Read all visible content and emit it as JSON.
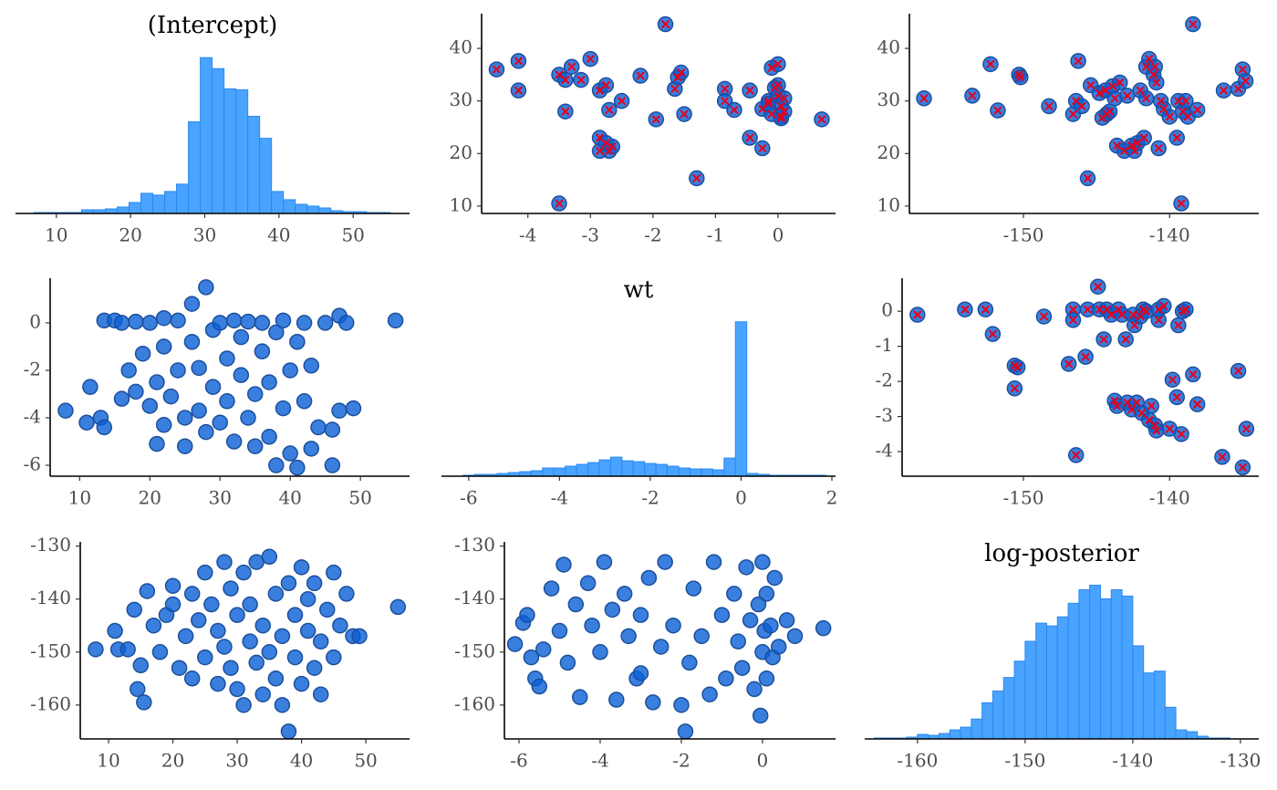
{
  "chart_data": [
    {
      "type": "histogram",
      "title": "(Intercept)",
      "color": "#4aa3ff",
      "edge_color": "#2a8af0",
      "bins": [
        7,
        8.6,
        10.2,
        11.8,
        13.4,
        15,
        16.6,
        18.2,
        19.8,
        21.4,
        23,
        24.6,
        26.2,
        27.8,
        29.4,
        31,
        32.6,
        34.2,
        35.8,
        37.4,
        39,
        40.6,
        42.2,
        43.8,
        45.4,
        47,
        48.6,
        50.2,
        51.8,
        53.4,
        55
      ],
      "counts": [
        1,
        1,
        1,
        1,
        4,
        4,
        5,
        7,
        12,
        22,
        20,
        24,
        32,
        100,
        170,
        158,
        136,
        135,
        106,
        82,
        24,
        15,
        10,
        8,
        6,
        3,
        2,
        2,
        1,
        1
      ],
      "xlim": [
        4.5,
        57.6
      ],
      "xticks": [
        10,
        20,
        30,
        40,
        50
      ]
    },
    {
      "type": "scatter",
      "color": "#0a5fd6",
      "edge_color": "#1b4f9c",
      "divergent": true,
      "divergent_color": "#e8001c",
      "x": [
        -4.5,
        -4.15,
        -4.15,
        -3.5,
        -3.5,
        -3.4,
        -3.4,
        -3.3,
        -3.15,
        -3.0,
        -2.85,
        -2.85,
        -2.75,
        -2.7,
        -2.85,
        -2.7,
        -2.65,
        -2.75,
        -2.5,
        -2.2,
        -1.95,
        -1.8,
        -1.65,
        -1.6,
        -1.55,
        -1.5,
        -1.3,
        -0.85,
        -0.85,
        -0.7,
        -0.45,
        -0.45,
        -0.25,
        -0.25,
        -0.15,
        -0.1,
        0,
        0,
        0,
        0.05,
        0.05,
        -0.1,
        0.1,
        0.05,
        0.7,
        -0.05,
        0.1,
        -0.15
      ],
      "values": [
        36,
        37.6,
        32,
        35,
        10.5,
        34,
        28,
        36.5,
        34,
        38,
        32,
        23,
        33,
        28.3,
        20.5,
        20.5,
        21.3,
        22,
        30,
        34.8,
        26.5,
        44.6,
        32.3,
        34.5,
        35.4,
        27.5,
        15.3,
        32.3,
        30,
        28.3,
        32,
        23,
        21,
        28.5,
        30,
        36.3,
        37,
        33,
        31,
        29,
        27,
        27.5,
        30.5,
        26.7,
        26.5,
        32.5,
        28,
        29.5
      ],
      "xlim": [
        -4.74,
        0.92
      ],
      "ylim": [
        8.6,
        46.6
      ],
      "xticks": [
        -4,
        -3,
        -2,
        -1,
        0
      ],
      "yticks": [
        10,
        20,
        30,
        40
      ]
    },
    {
      "type": "scatter",
      "color": "#0a5fd6",
      "edge_color": "#1b4f9c",
      "divergent": true,
      "divergent_color": "#e8001c",
      "x": [
        -156.8,
        -153.5,
        -152.25,
        -151.75,
        -150.3,
        -150.2,
        -148.25,
        -146.6,
        -146.4,
        -146.25,
        -146.0,
        -145.4,
        -145.6,
        -144.8,
        -144.6,
        -144.4,
        -144.3,
        -144.1,
        -143.9,
        -143.75,
        -143.6,
        -143.4,
        -143.1,
        -142.9,
        -142.6,
        -142.4,
        -142.2,
        -142.0,
        -141.75,
        -141.6,
        -141.6,
        -141.4,
        -141.1,
        -141.0,
        -140.9,
        -140.75,
        -140.6,
        -140.4,
        -140.0,
        -139.5,
        -139.4,
        -139.2,
        -139.1,
        -138.9,
        -138.75,
        -138.4,
        -138.1,
        -136.3,
        -135.3,
        -135.0,
        -134.8
      ],
      "values": [
        30.5,
        31,
        37,
        28.2,
        35,
        34.5,
        29,
        27.5,
        30,
        37.6,
        29,
        33,
        15.3,
        31.5,
        26.8,
        32,
        27.5,
        28,
        32.8,
        30.5,
        21.5,
        33.5,
        20.5,
        31,
        21.5,
        20.5,
        22,
        32,
        23,
        30.5,
        36.5,
        38,
        35,
        36.5,
        33.5,
        21,
        30,
        28.5,
        27,
        23,
        30,
        10.5,
        28,
        30,
        27,
        44.6,
        28.3,
        32,
        32.3,
        36,
        33.8
      ],
      "xlim": [
        -157.8,
        -133.9
      ],
      "ylim": [
        8.6,
        46.6
      ],
      "xticks": [
        -150,
        -140
      ],
      "yticks": [
        10,
        20,
        30,
        40
      ]
    },
    {
      "type": "scatter",
      "color": "#0a5fd6",
      "edge_color": "#1b4f9c",
      "divergent": false,
      "x": [
        8,
        11,
        11.5,
        13,
        13.5,
        13.5,
        15,
        16,
        16,
        17,
        18,
        18,
        19,
        20,
        20,
        21,
        21,
        22,
        22,
        22,
        23,
        24,
        24,
        25,
        25,
        26,
        26,
        27,
        27,
        28,
        28,
        29,
        29,
        30,
        30,
        31,
        31,
        32,
        32,
        33,
        33,
        34,
        34,
        35,
        35,
        36,
        36,
        37,
        37,
        38,
        38,
        39,
        39,
        40,
        40,
        41,
        41,
        42,
        42,
        43,
        43,
        44,
        45,
        46,
        46,
        47,
        47,
        48,
        49,
        55
      ],
      "values": [
        -3.7,
        -4.2,
        -2.7,
        -4.0,
        -4.4,
        0.1,
        0.1,
        -3.2,
        0,
        -2.0,
        -2.9,
        0.05,
        -1.3,
        -3.5,
        0,
        -5.1,
        -2.5,
        -4.3,
        -1.0,
        0.2,
        -3.1,
        -2.0,
        0.1,
        -5.2,
        -4.0,
        -0.8,
        0.8,
        -3.7,
        -1.9,
        1.5,
        -4.6,
        -0.3,
        -2.7,
        0,
        -4.2,
        -1.5,
        -3.3,
        0.1,
        -5.0,
        -2.2,
        -0.6,
        -4.0,
        0.05,
        -3.0,
        -5.2,
        -1.2,
        0,
        -4.8,
        -2.5,
        -6.0,
        -0.4,
        -3.6,
        0.1,
        -5.5,
        -2.0,
        -6.1,
        -0.8,
        -3.3,
        0,
        -5.3,
        -1.8,
        -4.4,
        0,
        -6.0,
        -4.5,
        0.3,
        -3.7,
        0,
        -3.6,
        0.1
      ],
      "xlim": [
        5.8,
        57
      ],
      "ylim": [
        -6.46,
        1.88
      ],
      "xticks": [
        10,
        20,
        30,
        40,
        50
      ],
      "yticks": [
        -6,
        -4,
        -2,
        0
      ]
    },
    {
      "type": "histogram",
      "title": "wt",
      "color": "#4aa3ff",
      "edge_color": "#2a8af0",
      "bins": [
        -6.125,
        -5.875,
        -5.625,
        -5.375,
        -5.125,
        -4.875,
        -4.625,
        -4.375,
        -4.125,
        -3.875,
        -3.625,
        -3.375,
        -3.125,
        -2.875,
        -2.625,
        -2.375,
        -2.125,
        -1.875,
        -1.625,
        -1.375,
        -1.125,
        -0.875,
        -0.625,
        -0.375,
        -0.125,
        0.125,
        0.375,
        0.625,
        0.875,
        1.125,
        1.375,
        1.625,
        1.875
      ],
      "counts": [
        1,
        2,
        2,
        3,
        4,
        5,
        6,
        9,
        9,
        11,
        13,
        15,
        18,
        21,
        17,
        16,
        14,
        13,
        11,
        9,
        8,
        8,
        7,
        20,
        170,
        3,
        2,
        1,
        1,
        1,
        1,
        1
      ],
      "xlim": [
        -6.6,
        2.08
      ],
      "xticks": [
        -6,
        -4,
        -2,
        0,
        2
      ]
    },
    {
      "type": "scatter",
      "color": "#0a5fd6",
      "edge_color": "#1b4f9c",
      "divergent": true,
      "divergent_color": "#e8001c",
      "x": [
        -157.25,
        -154.0,
        -152.6,
        -152.1,
        -150.6,
        -150.4,
        -150.6,
        -148.6,
        -146.9,
        -146.6,
        -146.6,
        -146.4,
        -145.75,
        -145.6,
        -144.9,
        -144.8,
        -144.5,
        -144.3,
        -144.0,
        -143.75,
        -143.6,
        -143.5,
        -143.25,
        -143.0,
        -142.9,
        -142.6,
        -142.5,
        -142.4,
        -142.25,
        -142.0,
        -141.9,
        -141.8,
        -141.6,
        -141.4,
        -141.25,
        -141.0,
        -140.9,
        -140.75,
        -140.75,
        -140.4,
        -140.0,
        -139.8,
        -139.5,
        -139.4,
        -139.2,
        -139.1,
        -138.9,
        -138.4,
        -138.1,
        -136.4,
        -135.3,
        -135.0,
        -134.75
      ],
      "values": [
        -0.1,
        0.05,
        0.05,
        -0.65,
        -1.55,
        -1.6,
        -2.2,
        -0.15,
        -1.5,
        0.05,
        -0.25,
        -4.1,
        -1.3,
        0.05,
        0.7,
        0.05,
        -0.8,
        0.05,
        -0.1,
        -2.55,
        -2.7,
        0.05,
        -0.1,
        -0.8,
        -2.6,
        -2.8,
        -0.1,
        -0.4,
        -2.6,
        -0.15,
        -2.9,
        0.05,
        0,
        -3.1,
        -2.7,
        -3.25,
        -3.4,
        -0.25,
        0.05,
        0.15,
        -3.35,
        -1.95,
        -2.45,
        -0.4,
        -3.5,
        0,
        0.05,
        -1.8,
        -2.65,
        -4.15,
        -1.7,
        -4.45,
        -3.35
      ],
      "xlim": [
        -158.3,
        -133.9
      ],
      "ylim": [
        -4.7,
        0.94
      ],
      "xticks": [
        -150,
        -140
      ],
      "yticks": [
        -4,
        -3,
        -2,
        -1,
        0
      ]
    },
    {
      "type": "scatter",
      "color": "#0a5fd6",
      "edge_color": "#1b4f9c",
      "divergent": false,
      "x": [
        8,
        11,
        11.5,
        13,
        14,
        14.5,
        15,
        15.5,
        16,
        17,
        18,
        19,
        20,
        20,
        21,
        22,
        23,
        23,
        24,
        25,
        25,
        26,
        27,
        27,
        28,
        28,
        29,
        29,
        30,
        30,
        31,
        31,
        32,
        32,
        33,
        33,
        34,
        34,
        35,
        35,
        36,
        36,
        37,
        37,
        38,
        38,
        39,
        39,
        40,
        40,
        41,
        41,
        42,
        42,
        43,
        43,
        44,
        45,
        45,
        46,
        47,
        48,
        49,
        55
      ],
      "values": [
        -149.5,
        -146,
        -149.5,
        -149.5,
        -142,
        -157,
        -152.5,
        -159.5,
        -138.5,
        -145,
        -150,
        -143,
        -141,
        -137.5,
        -153,
        -147,
        -155,
        -139,
        -144,
        -135,
        -151,
        -141,
        -156,
        -146,
        -133,
        -149,
        -138,
        -153,
        -143,
        -157,
        -160,
        -135,
        -148,
        -141,
        -152,
        -133,
        -145,
        -158,
        -132,
        -150,
        -139,
        -155,
        -147,
        -160,
        -165,
        -137,
        -143,
        -151,
        -134,
        -156,
        -146,
        -140,
        -153,
        -137,
        -148,
        -158,
        -142,
        -135,
        -151,
        -145,
        -139,
        -147,
        -147,
        -141.5
      ],
      "xlim": [
        5.6,
        56.8
      ],
      "ylim": [
        -166.4,
        -129.2
      ],
      "xticks": [
        10,
        20,
        30,
        40,
        50
      ],
      "yticks": [
        -160,
        -150,
        -140,
        -130
      ]
    },
    {
      "type": "scatter",
      "color": "#0a5fd6",
      "edge_color": "#1b4f9c",
      "divergent": false,
      "x": [
        -6.1,
        -5.9,
        -5.8,
        -5.6,
        -5.5,
        -5.4,
        -5.2,
        -5.0,
        -4.8,
        -4.6,
        -4.5,
        -4.3,
        -4.2,
        -4.0,
        -3.9,
        -3.7,
        -3.6,
        -3.4,
        -3.3,
        -3.1,
        -3.0,
        -2.8,
        -2.7,
        -2.5,
        -2.4,
        -2.2,
        -2.0,
        -1.9,
        -1.8,
        -1.7,
        -1.5,
        -1.3,
        -1.2,
        -1.0,
        -0.9,
        -0.7,
        -0.6,
        -0.5,
        -0.4,
        -0.3,
        -0.2,
        -0.1,
        -0.05,
        0,
        0,
        0.05,
        0.1,
        0.1,
        0.2,
        0.25,
        0.3,
        0.4,
        0.6,
        0.8,
        1.5,
        -4.9,
        -5.7,
        -3.0
      ],
      "values": [
        -148.5,
        -144.5,
        -143,
        -155,
        -156.5,
        -149.5,
        -138,
        -146,
        -152,
        -141,
        -158.5,
        -137,
        -145,
        -150,
        -133,
        -142,
        -159,
        -139,
        -147,
        -155,
        -143,
        -136,
        -159.5,
        -149,
        -133,
        -145,
        -160,
        -165,
        -152,
        -138,
        -147,
        -158,
        -133,
        -143,
        -155,
        -139,
        -148,
        -153,
        -134,
        -144,
        -157,
        -141,
        -162,
        -150,
        -133,
        -146,
        -155,
        -139,
        -145,
        -151,
        -136,
        -149,
        -144,
        -147,
        -145.5,
        -133.5,
        -151,
        -154
      ],
      "xlim": [
        -6.36,
        1.8
      ],
      "ylim": [
        -166.4,
        -129.2
      ],
      "xticks": [
        -6,
        -4,
        -2,
        0
      ],
      "yticks": [
        -160,
        -150,
        -140,
        -130
      ]
    },
    {
      "type": "histogram",
      "title": "log-posterior",
      "color": "#4aa3ff",
      "edge_color": "#2a8af0",
      "bins": [
        -164,
        -163,
        -162,
        -161,
        -160,
        -159,
        -158,
        -157,
        -156,
        -155,
        -154,
        -153,
        -152,
        -151,
        -150,
        -149,
        -148,
        -147,
        -146,
        -145,
        -144,
        -143,
        -142,
        -141,
        -140,
        -139,
        -138,
        -137,
        -136,
        -135,
        -134,
        -133,
        -132,
        -131
      ],
      "counts": [
        1,
        1,
        1,
        2,
        5,
        4,
        6,
        10,
        13,
        22,
        40,
        53,
        68,
        86,
        108,
        128,
        125,
        135,
        150,
        165,
        170,
        155,
        165,
        158,
        103,
        73,
        75,
        35,
        10,
        8,
        3,
        1,
        1
      ],
      "xlim": [
        -164.9,
        -128.3
      ],
      "xticks": [
        -160,
        -150,
        -140,
        -130
      ]
    }
  ]
}
